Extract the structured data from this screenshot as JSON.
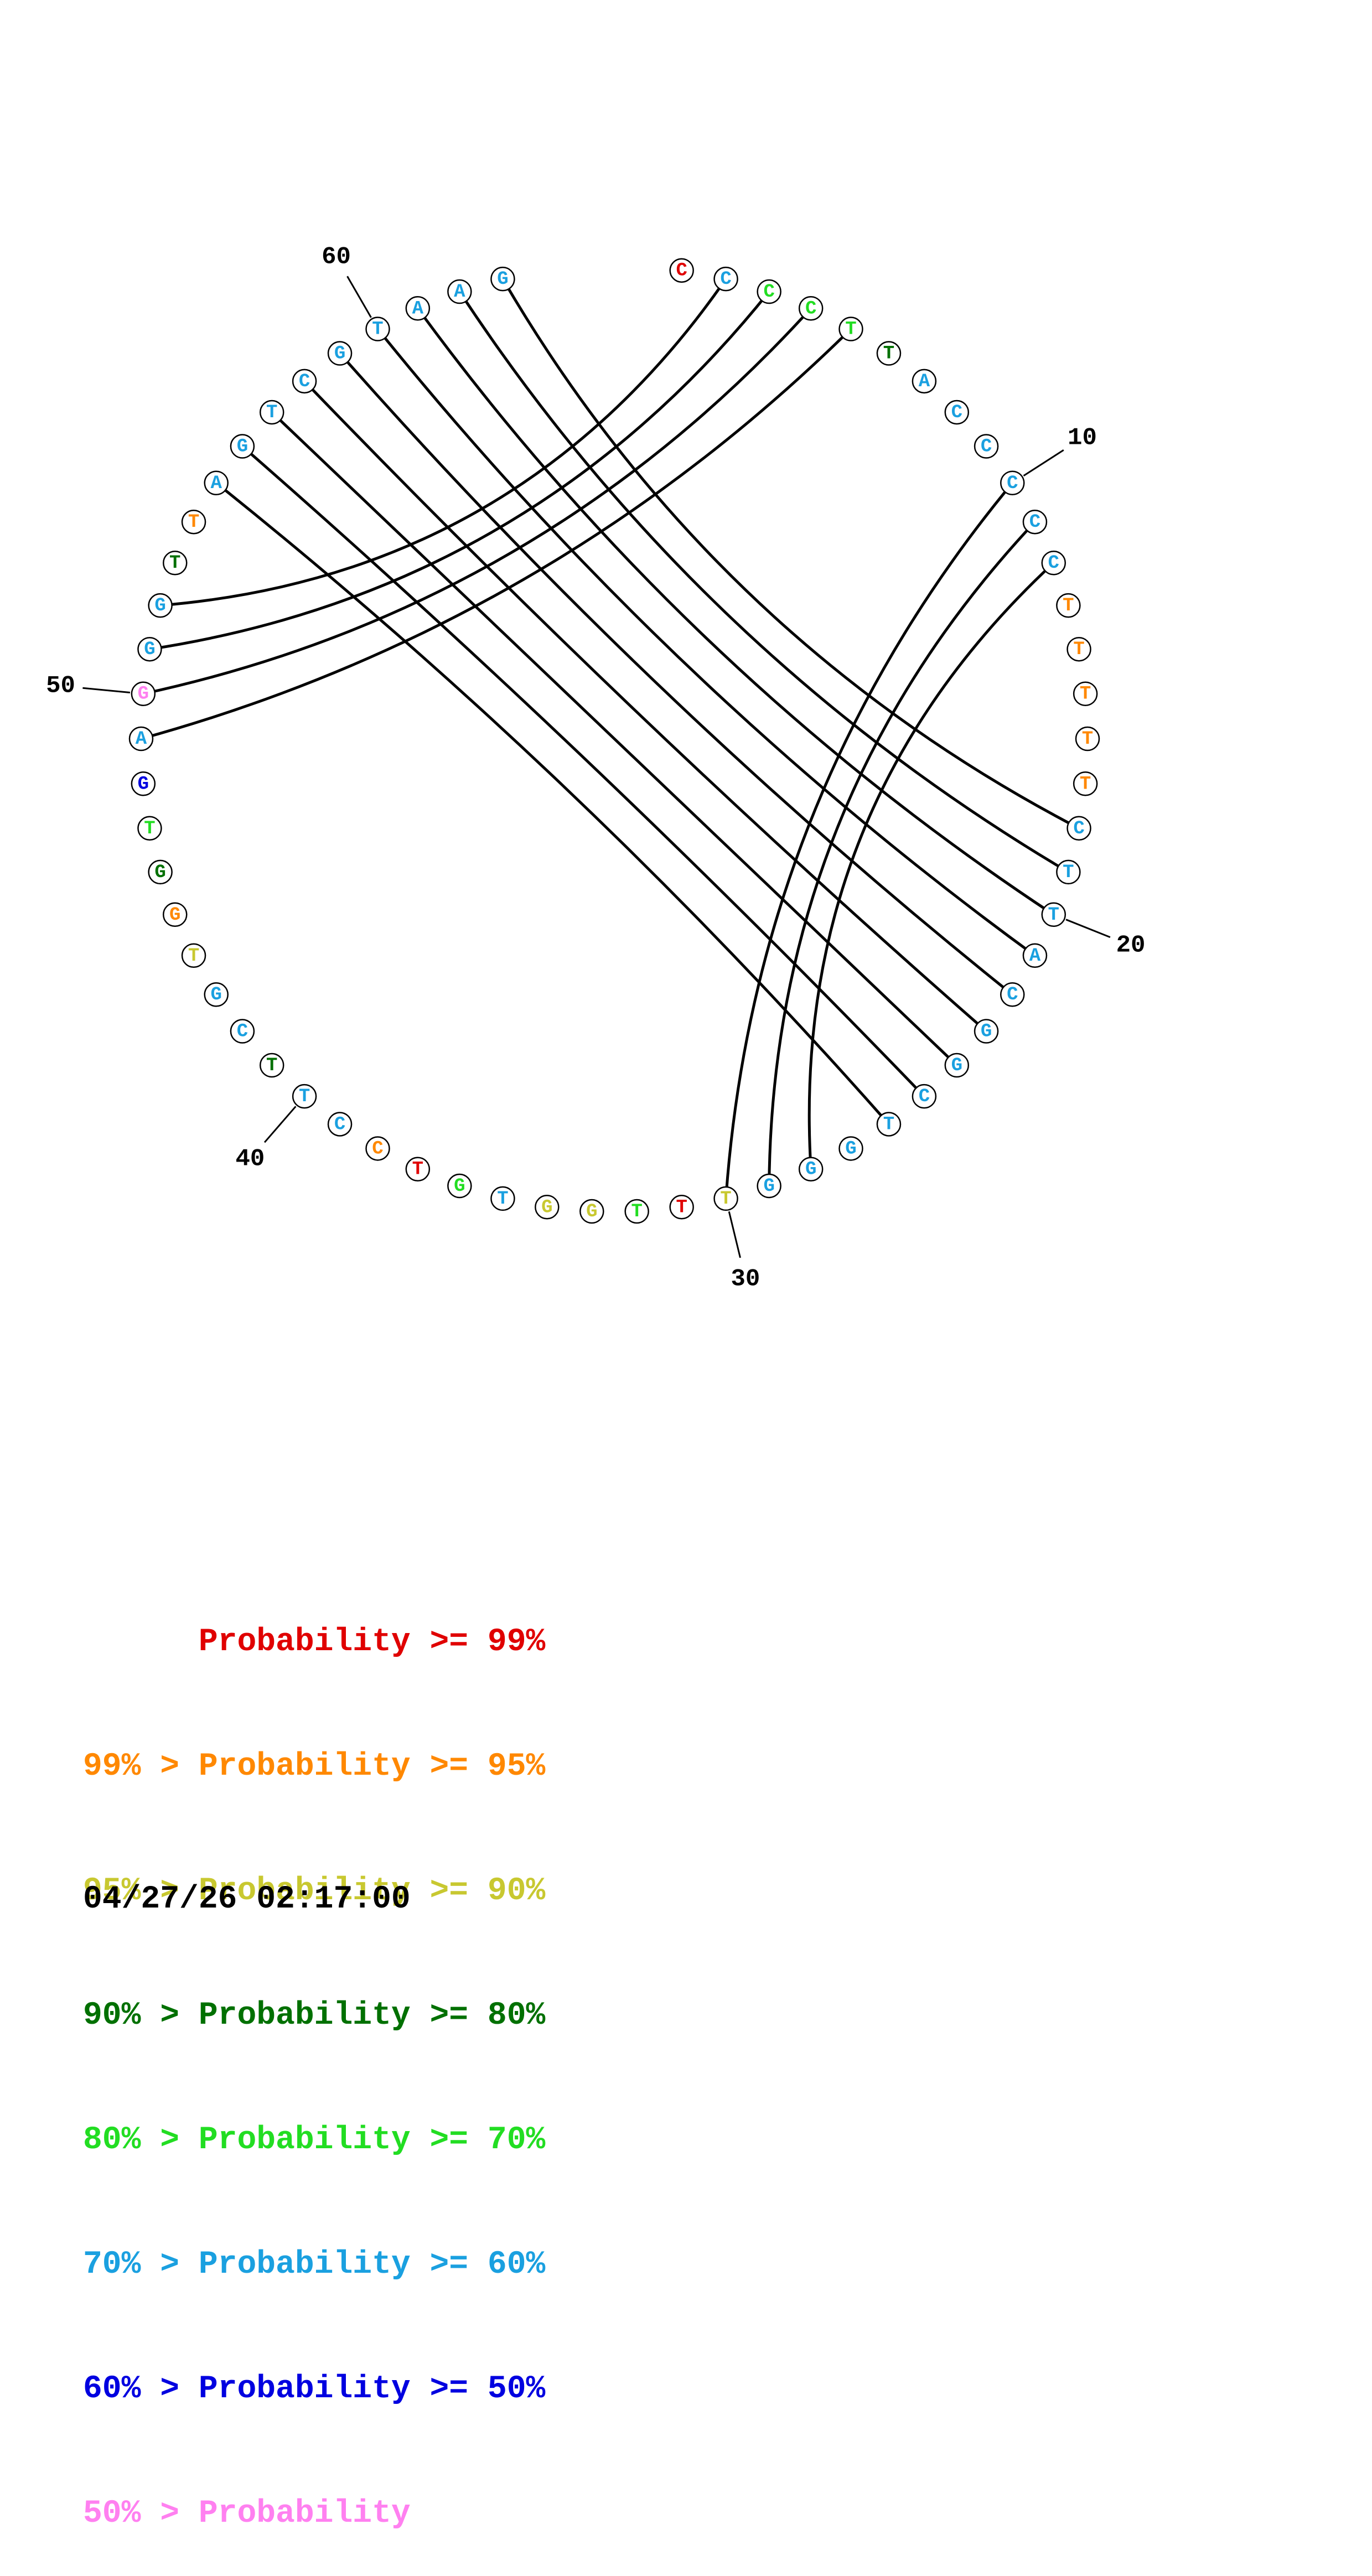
{
  "sequence": [
    "C",
    "C",
    "C",
    "C",
    "T",
    "T",
    "A",
    "C",
    "C",
    "C",
    "C",
    "C",
    "T",
    "T",
    "T",
    "T",
    "T",
    "C",
    "T",
    "T",
    "A",
    "C",
    "G",
    "G",
    "C",
    "T",
    "G",
    "G",
    "G",
    "T",
    "T",
    "T",
    "G",
    "G",
    "T",
    "G",
    "T",
    "C",
    "C",
    "T",
    "T",
    "C",
    "G",
    "T",
    "G",
    "G",
    "T",
    "G",
    "A",
    "G",
    "G",
    "G",
    "T",
    "T",
    "A",
    "G",
    "T",
    "C",
    "G",
    "T",
    "A",
    "A",
    "G"
  ],
  "prob_class": [
    0,
    5,
    4,
    4,
    4,
    3,
    5,
    5,
    5,
    5,
    5,
    5,
    1,
    1,
    1,
    1,
    1,
    5,
    5,
    5,
    5,
    5,
    5,
    5,
    5,
    5,
    5,
    5,
    5,
    2,
    0,
    4,
    2,
    2,
    5,
    4,
    0,
    1,
    5,
    5,
    3,
    5,
    5,
    2,
    1,
    3,
    4,
    6,
    5,
    7,
    5,
    5,
    3,
    1,
    5,
    5,
    5,
    5,
    5,
    5,
    5,
    5,
    5
  ],
  "pairs": [
    [
      2,
      52
    ],
    [
      3,
      51
    ],
    [
      4,
      50
    ],
    [
      5,
      49
    ],
    [
      10,
      30
    ],
    [
      11,
      29
    ],
    [
      12,
      28
    ],
    [
      18,
      63
    ],
    [
      19,
      62
    ],
    [
      20,
      61
    ],
    [
      21,
      60
    ],
    [
      22,
      59
    ],
    [
      23,
      58
    ],
    [
      24,
      57
    ],
    [
      25,
      56
    ],
    [
      26,
      55
    ]
  ],
  "position_labels": [
    "10",
    "20",
    "30",
    "40",
    "50",
    "60"
  ],
  "colors": {
    "classes": [
      "#e00000",
      "#ff8800",
      "#c8c830",
      "#007000",
      "#22dd22",
      "#1aa0e0",
      "#0000e0",
      "#ff80f0"
    ],
    "circle_outline": "#000000",
    "pair_line": "#000000"
  },
  "legend": [
    {
      "text": "      Probability >= 99%",
      "color_class": 0
    },
    {
      "text": "99% > Probability >= 95%",
      "color_class": 1
    },
    {
      "text": "95% > Probability >= 90%",
      "color_class": 2
    },
    {
      "text": "90% > Probability >= 80%",
      "color_class": 3
    },
    {
      "text": "80% > Probability >= 70%",
      "color_class": 4
    },
    {
      "text": "70% > Probability >= 60%",
      "color_class": 5
    },
    {
      "text": "60% > Probability >= 50%",
      "color_class": 6
    },
    {
      "text": "50% > Probability",
      "color_class": 7
    }
  ],
  "timestamp": "04/27/26 02:17:00"
}
